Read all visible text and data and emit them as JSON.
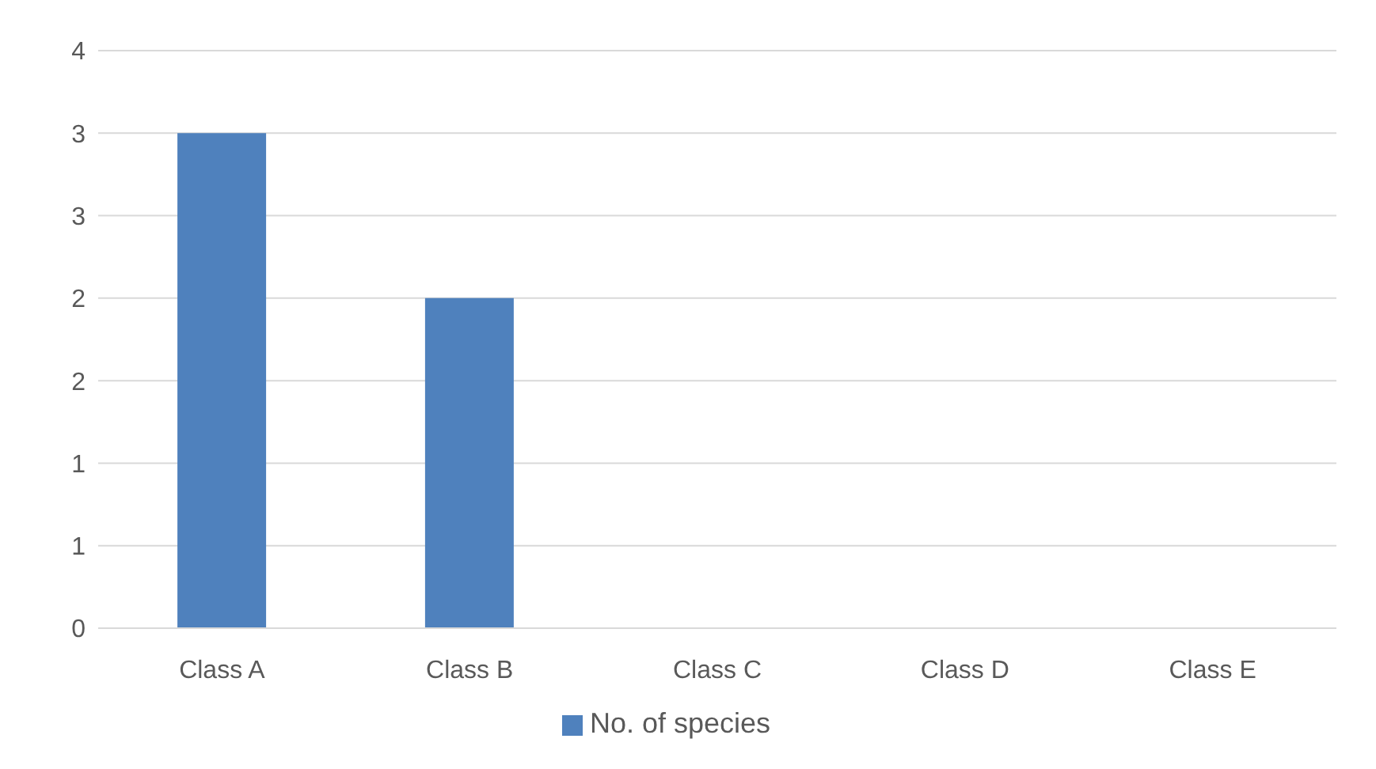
{
  "chart_data": {
    "type": "bar",
    "categories": [
      "Class A",
      "Class B",
      "Class C",
      "Class D",
      "Class E"
    ],
    "series": [
      {
        "name": "No. of species",
        "color": "#4f81bd",
        "values": [
          3,
          2,
          0,
          0,
          0
        ]
      }
    ],
    "ylim": [
      0,
      3.5
    ],
    "yticks": [
      0,
      {
        "value": 0.5,
        "label": "1"
      },
      1,
      {
        "value": 1.5,
        "label": "2"
      },
      2,
      {
        "value": 2.5,
        "label": "3"
      },
      3,
      {
        "value": 3.5,
        "label": "4"
      }
    ],
    "grid": "y",
    "legend": "bottom"
  }
}
